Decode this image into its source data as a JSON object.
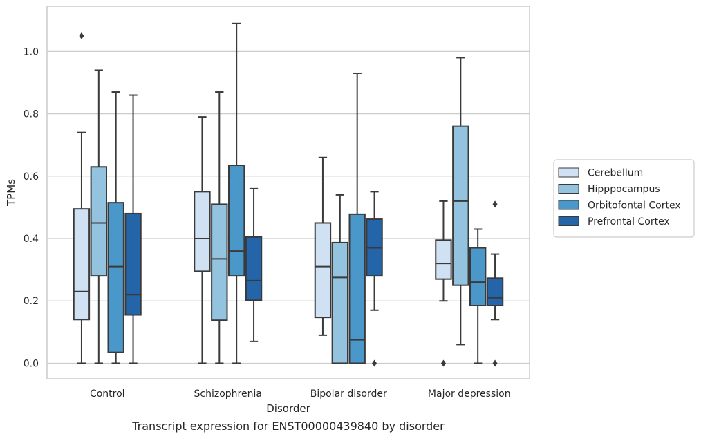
{
  "chart_data": {
    "type": "box",
    "xlabel": "Disorder",
    "ylabel": "TPMs",
    "caption": "Transcript expression for ENST00000439840 by disorder",
    "categories": [
      "Control",
      "Schizophrenia",
      "Bipolar disorder",
      "Major depression"
    ],
    "ylim": [
      -0.05,
      1.145
    ],
    "yticks": [
      0.0,
      0.2,
      0.4,
      0.6,
      0.8,
      1.0
    ],
    "ytick_labels": [
      "0.0",
      "0.2",
      "0.4",
      "0.6",
      "0.8",
      "1.0"
    ],
    "grid": true,
    "legend": "right",
    "colors": {
      "edge": "#3a3a3a",
      "grid": "#cccccc",
      "frame": "#cccccc"
    },
    "series": [
      {
        "name": "Cerebellum",
        "color": "#cfe1f2",
        "boxes": [
          {
            "whislo": 0.0,
            "q1": 0.14,
            "med": 0.23,
            "q3": 0.495,
            "whishi": 0.74,
            "fliers": [
              1.05
            ]
          },
          {
            "whislo": 0.0,
            "q1": 0.295,
            "med": 0.4,
            "q3": 0.55,
            "whishi": 0.79,
            "fliers": []
          },
          {
            "whislo": 0.09,
            "q1": 0.147,
            "med": 0.31,
            "q3": 0.45,
            "whishi": 0.66,
            "fliers": []
          },
          {
            "whislo": 0.2,
            "q1": 0.27,
            "med": 0.32,
            "q3": 0.395,
            "whishi": 0.52,
            "fliers": [
              0.0
            ]
          }
        ]
      },
      {
        "name": "Hipppocampus",
        "color": "#93c3df",
        "boxes": [
          {
            "whislo": 0.0,
            "q1": 0.28,
            "med": 0.45,
            "q3": 0.63,
            "whishi": 0.94,
            "fliers": []
          },
          {
            "whislo": 0.0,
            "q1": 0.138,
            "med": 0.335,
            "q3": 0.51,
            "whishi": 0.87,
            "fliers": []
          },
          {
            "whislo": 0.0,
            "q1": 0.0,
            "med": 0.275,
            "q3": 0.387,
            "whishi": 0.54,
            "fliers": []
          },
          {
            "whislo": 0.06,
            "q1": 0.25,
            "med": 0.52,
            "q3": 0.76,
            "whishi": 0.98,
            "fliers": []
          }
        ]
      },
      {
        "name": "Orbitofontal Cortex",
        "color": "#4a98c9",
        "boxes": [
          {
            "whislo": 0.0,
            "q1": 0.035,
            "med": 0.31,
            "q3": 0.515,
            "whishi": 0.87,
            "fliers": []
          },
          {
            "whislo": 0.0,
            "q1": 0.28,
            "med": 0.36,
            "q3": 0.635,
            "whishi": 1.09,
            "fliers": []
          },
          {
            "whislo": 0.0,
            "q1": 0.0,
            "med": 0.075,
            "q3": 0.478,
            "whishi": 0.93,
            "fliers": []
          },
          {
            "whislo": 0.0,
            "q1": 0.185,
            "med": 0.26,
            "q3": 0.37,
            "whishi": 0.43,
            "fliers": []
          }
        ]
      },
      {
        "name": "Prefrontal Cortex",
        "color": "#2464a8",
        "boxes": [
          {
            "whislo": 0.0,
            "q1": 0.155,
            "med": 0.22,
            "q3": 0.48,
            "whishi": 0.86,
            "fliers": []
          },
          {
            "whislo": 0.07,
            "q1": 0.202,
            "med": 0.265,
            "q3": 0.405,
            "whishi": 0.56,
            "fliers": []
          },
          {
            "whislo": 0.17,
            "q1": 0.28,
            "med": 0.37,
            "q3": 0.462,
            "whishi": 0.55,
            "fliers": [
              0.0
            ]
          },
          {
            "whislo": 0.14,
            "q1": 0.185,
            "med": 0.21,
            "q3": 0.273,
            "whishi": 0.35,
            "fliers": [
              0.51,
              0.0
            ]
          }
        ]
      }
    ]
  }
}
